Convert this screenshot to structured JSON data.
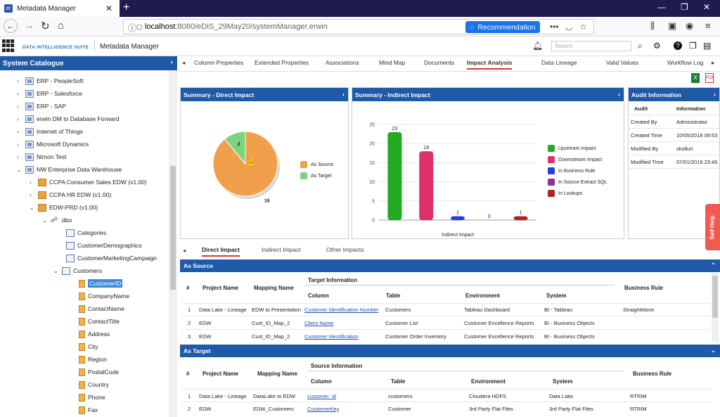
{
  "browser": {
    "tab_title": "Metadata Manager",
    "tab_icon": "er",
    "url_host": "localhost",
    "url_rest": ":8080/eDIS_29May20/systemManager.erwin",
    "recommendation": "Recommendation"
  },
  "app": {
    "logo": "DATA INTELLIGENCE SUITE",
    "name": "Metadata Manager",
    "search_placeholder": "Search"
  },
  "sidebar": {
    "title": "System Catalogue",
    "items": [
      {
        "label": "ERP - PeopleSoft"
      },
      {
        "label": "ERP - Salesforce"
      },
      {
        "label": "ERP - SAP"
      },
      {
        "label": "erwin DM to Database Forward"
      },
      {
        "label": "Internet of Things"
      },
      {
        "label": "Microsoft Dynamics"
      },
      {
        "label": "Nimon Test"
      },
      {
        "label": "NW Enterprise Data Warehouse"
      },
      {
        "label": "CCPA Consumer Sales EDW (v1.00)"
      },
      {
        "label": "CCPA HR EDW (v1.00)"
      },
      {
        "label": "EDW-PRD (v1.00)"
      },
      {
        "label": "dbo"
      },
      {
        "label": "Categories"
      },
      {
        "label": "CustomerDemographics"
      },
      {
        "label": "CustomerMarketingCampaign"
      },
      {
        "label": "Customers"
      },
      {
        "label": "CustomerID"
      },
      {
        "label": "CompanyName"
      },
      {
        "label": "ContactName"
      },
      {
        "label": "ContactTitle"
      },
      {
        "label": "Address"
      },
      {
        "label": "City"
      },
      {
        "label": "Region"
      },
      {
        "label": "PostalCode"
      },
      {
        "label": "Country"
      },
      {
        "label": "Phone"
      },
      {
        "label": "Fax"
      }
    ]
  },
  "tabs": [
    "Column Properties",
    "Extended Properties",
    "Associations",
    "Mind Map",
    "Documents",
    "Impact Analysis",
    "Data Lineage",
    "Valid Values",
    "Workflow Log"
  ],
  "direct_panel": {
    "title": "Summary - Direct Impact",
    "legend": [
      {
        "label": "As Source",
        "color": "#f0a04b"
      },
      {
        "label": "As Target",
        "color": "#7ed47e"
      }
    ]
  },
  "indirect_panel": {
    "title": "Summary - Indirect Impact",
    "legend": [
      {
        "label": "Upstream Impact",
        "color": "#22aa22"
      },
      {
        "label": "Downstream Impact",
        "color": "#e0306a"
      },
      {
        "label": "In Business Rule",
        "color": "#2a3de0"
      },
      {
        "label": "In Source Extract SQL",
        "color": "#9b2a9b"
      },
      {
        "label": "In Lookups",
        "color": "#b22222"
      }
    ]
  },
  "chart_data": [
    {
      "type": "pie",
      "categories": [
        "As Source",
        "As Target"
      ],
      "values": [
        16,
        2
      ]
    },
    {
      "type": "bar",
      "categories": [
        "Upstream Impact",
        "Downstream Impact",
        "In Business Rule",
        "In Source Extract SQL",
        "In Lookups"
      ],
      "values": [
        23,
        18,
        1,
        0,
        1
      ],
      "xlabel": "Indirect Impact",
      "yticks": [
        0,
        5,
        10,
        15,
        20,
        25
      ],
      "ylim": [
        0,
        25
      ]
    }
  ],
  "audit": {
    "title": "Audit Information",
    "col1": "Audit",
    "col2": "Information",
    "rows": [
      {
        "k": "Created By",
        "v": "Administrator"
      },
      {
        "k": "Created Time",
        "v": "10/05/2018 09:53"
      },
      {
        "k": "Modified By",
        "v": "skolluri"
      },
      {
        "k": "Modified Time",
        "v": "07/01/2019 23:45"
      }
    ]
  },
  "subtabs": [
    "Direct Impact",
    "Indirect Impact",
    "Other Impacts"
  ],
  "as_source": {
    "title": "As Source",
    "headers": {
      "num": "#",
      "project": "Project Name",
      "mapping": "Mapping Name",
      "group": "Target Information",
      "column": "Column",
      "table": "Table",
      "env": "Environment",
      "system": "System",
      "rule": "Business Rule"
    },
    "rows": [
      [
        "1",
        "Data Lake - Lineage",
        "EDW to Presentation",
        "Customer Identification Number",
        "Customers",
        "Tableau Dashboard",
        "BI - Tableau",
        "StraightMove"
      ],
      [
        "2",
        "EDW",
        "Cust_ID_Map_2",
        "Client Name",
        "Customer List",
        "Customer Excellence Reports",
        "BI - Business Objects",
        ""
      ],
      [
        "3",
        "EDW",
        "Cust_ID_Map_2",
        "Customer Identification",
        "Customer Order Inventory",
        "Customer Excellence Reports",
        "BI - Business Objects",
        ""
      ]
    ]
  },
  "as_target": {
    "title": "As Target",
    "headers": {
      "num": "#",
      "project": "Project Name",
      "mapping": "Mapping Name",
      "group": "Source Information",
      "column": "Column",
      "table": "Table",
      "env": "Environment",
      "system": "System",
      "rule": "Business Rule"
    },
    "rows": [
      [
        "1",
        "Data Lake - Lineage",
        "DataLake to EDW",
        "customer_id",
        "customers",
        "Cloudera HDFS",
        "Data Lake",
        "RTRIM"
      ],
      [
        "2",
        "EDW",
        "EDW_Customers",
        "CustomerKey",
        "Customer",
        "3rd Party Flat Files",
        "3rd Party Flat Files",
        "RTRIM"
      ]
    ]
  },
  "self_help": "Self Help"
}
